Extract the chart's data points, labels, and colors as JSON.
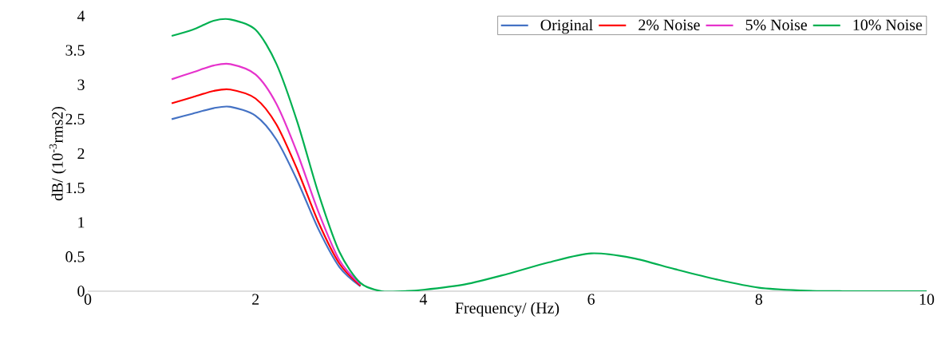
{
  "chart_data": {
    "type": "line",
    "xlabel": "Frequency/ (Hz)",
    "ylabel": "dB/ (10$^{-3}$rms2)",
    "x": [
      1,
      1.25,
      1.5,
      1.7,
      2,
      2.25,
      2.5,
      2.75,
      3,
      3.25,
      3.5,
      3.75,
      4,
      4.5,
      5,
      5.5,
      6,
      6.5,
      7,
      7.5,
      8,
      8.5,
      9,
      9.5,
      10
    ],
    "series": [
      {
        "name": "Original",
        "color": "#4472c4",
        "values": [
          2.5,
          2.58,
          2.66,
          2.68,
          2.55,
          2.2,
          1.6,
          0.9,
          0.35,
          0.07,
          null,
          null,
          null,
          null,
          null,
          null,
          null,
          null,
          null,
          null,
          null,
          null,
          null,
          null,
          null
        ]
      },
      {
        "name": "2% Noise",
        "color": "#ff0000",
        "values": [
          2.73,
          2.82,
          2.91,
          2.93,
          2.8,
          2.42,
          1.76,
          1.0,
          0.4,
          0.08,
          null,
          null,
          null,
          null,
          null,
          null,
          null,
          null,
          null,
          null,
          null,
          null,
          null,
          null,
          null
        ]
      },
      {
        "name": "5% Noise",
        "color": "#e633cc",
        "values": [
          3.08,
          3.18,
          3.28,
          3.3,
          3.15,
          2.72,
          2.0,
          1.15,
          0.45,
          0.1,
          null,
          null,
          null,
          null,
          null,
          null,
          null,
          null,
          null,
          null,
          null,
          null,
          null,
          null,
          null
        ]
      },
      {
        "name": "10% Noise",
        "color": "#00b050",
        "values": [
          3.71,
          3.8,
          3.93,
          3.95,
          3.8,
          3.3,
          2.45,
          1.42,
          0.57,
          0.12,
          0,
          0,
          0.02,
          0.1,
          0.25,
          0.42,
          0.55,
          0.48,
          0.32,
          0.17,
          0.05,
          0.01,
          0,
          0,
          0
        ]
      }
    ],
    "xlim": [
      0,
      10
    ],
    "xticks": [
      0,
      2,
      4,
      6,
      8,
      10
    ],
    "ylim": [
      0,
      4
    ],
    "yticks": [
      0,
      0.5,
      1,
      1.5,
      2,
      2.5,
      3,
      3.5,
      4
    ],
    "legend": "top right",
    "grid": false,
    "marker": "none",
    "line_style": "solid"
  }
}
